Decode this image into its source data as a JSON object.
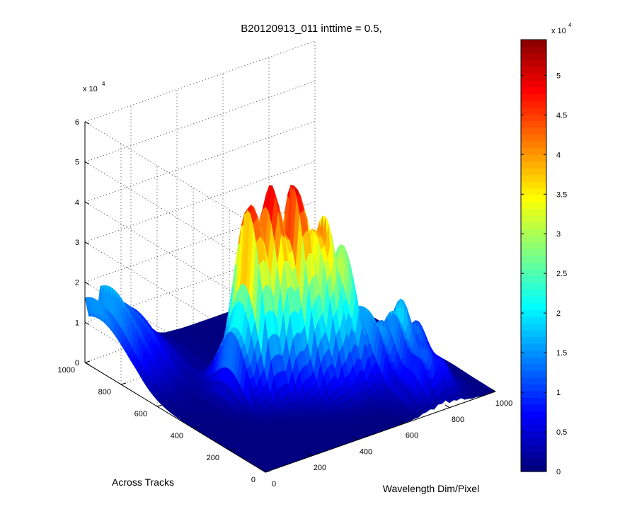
{
  "chart_data": {
    "type": "surface3d",
    "title": "B20120913_011 inttime = 0.5,",
    "xlabel": "Wavelength Dim/Pixel",
    "ylabel": "Across Tracks",
    "zlabel": "",
    "x_ticks": [
      "0",
      "200",
      "400",
      "600",
      "800",
      "1000"
    ],
    "y_ticks": [
      "0",
      "200",
      "400",
      "600",
      "800",
      "1000"
    ],
    "z_ticks": [
      "0",
      "1",
      "2",
      "3",
      "4",
      "5",
      "6"
    ],
    "z_exponent_base": "x 10",
    "z_exponent_power": "4",
    "xlim": [
      0,
      1000
    ],
    "ylim": [
      0,
      1000
    ],
    "zlim": [
      0,
      60000
    ],
    "grid": true,
    "colormap": "jet",
    "colorbar": {
      "ticks": [
        "0",
        "0.5",
        "1",
        "1.5",
        "2",
        "2.5",
        "3",
        "3.5",
        "4",
        "4.5",
        "5"
      ],
      "exponent_base": "x 10",
      "exponent_power": "4",
      "range": [
        0,
        54500
      ]
    },
    "peaks": [
      {
        "x": 60,
        "y": 940,
        "z": 20000
      },
      {
        "x": 330,
        "y": 480,
        "z": 57000
      },
      {
        "x": 450,
        "y": 430,
        "z": 38000
      },
      {
        "x": 560,
        "y": 360,
        "z": 42000
      },
      {
        "x": 780,
        "y": 240,
        "z": 21000
      },
      {
        "x": 780,
        "y": 90,
        "z": 12000
      }
    ]
  }
}
